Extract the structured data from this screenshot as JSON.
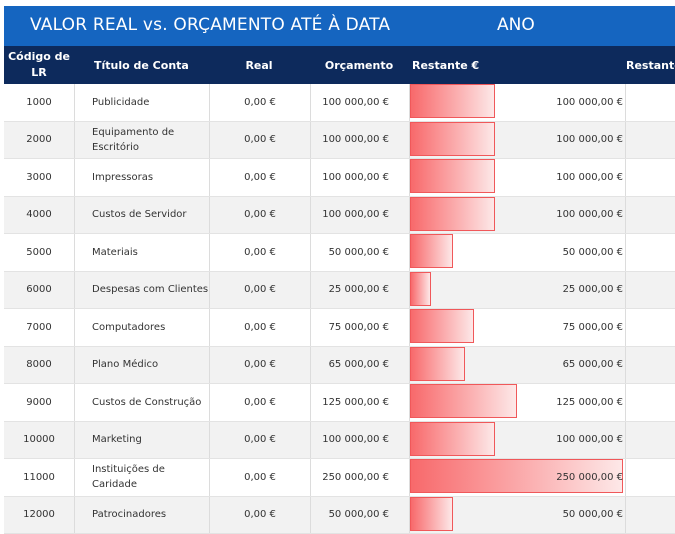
{
  "title": {
    "main": "VALOR REAL vs. ORÇAMENTO ATÉ À DATA",
    "period": "ANO"
  },
  "columns": {
    "code": "Código de LR",
    "title": "Título de Conta",
    "real": "Real",
    "budget": "Orçamento",
    "remaining": "Restante €",
    "remaining_cut": "Restante"
  },
  "bar_max": 250000,
  "colors": {
    "title_bar": "#1565c0",
    "header_bar": "#0d2a5c",
    "bar": "#f8696b"
  },
  "rows": [
    {
      "code": "1000",
      "title": "Publicidade",
      "real": "0,00 €",
      "budget": "100 000,00 €",
      "remaining": "100 000,00 €",
      "remaining_value": 100000
    },
    {
      "code": "2000",
      "title": "Equipamento de Escritório",
      "real": "0,00 €",
      "budget": "100 000,00 €",
      "remaining": "100 000,00 €",
      "remaining_value": 100000
    },
    {
      "code": "3000",
      "title": "Impressoras",
      "real": "0,00 €",
      "budget": "100 000,00 €",
      "remaining": "100 000,00 €",
      "remaining_value": 100000
    },
    {
      "code": "4000",
      "title": "Custos de Servidor",
      "real": "0,00 €",
      "budget": "100 000,00 €",
      "remaining": "100 000,00 €",
      "remaining_value": 100000
    },
    {
      "code": "5000",
      "title": "Materiais",
      "real": "0,00 €",
      "budget": "50 000,00 €",
      "remaining": "50 000,00 €",
      "remaining_value": 50000
    },
    {
      "code": "6000",
      "title": "Despesas com Clientes",
      "real": "0,00 €",
      "budget": "25 000,00 €",
      "remaining": "25 000,00 €",
      "remaining_value": 25000
    },
    {
      "code": "7000",
      "title": "Computadores",
      "real": "0,00 €",
      "budget": "75 000,00 €",
      "remaining": "75 000,00 €",
      "remaining_value": 75000
    },
    {
      "code": "8000",
      "title": "Plano Médico",
      "real": "0,00 €",
      "budget": "65 000,00 €",
      "remaining": "65 000,00 €",
      "remaining_value": 65000
    },
    {
      "code": "9000",
      "title": "Custos de Construção",
      "real": "0,00 €",
      "budget": "125 000,00 €",
      "remaining": "125 000,00 €",
      "remaining_value": 125000
    },
    {
      "code": "10000",
      "title": "Marketing",
      "real": "0,00 €",
      "budget": "100 000,00 €",
      "remaining": "100 000,00 €",
      "remaining_value": 100000
    },
    {
      "code": "11000",
      "title": "Instituições de Caridade",
      "real": "0,00 €",
      "budget": "250 000,00 €",
      "remaining": "250 000,00 €",
      "remaining_value": 250000
    },
    {
      "code": "12000",
      "title": "Patrocinadores",
      "real": "0,00 €",
      "budget": "50 000,00 €",
      "remaining": "50 000,00 €",
      "remaining_value": 50000
    }
  ]
}
